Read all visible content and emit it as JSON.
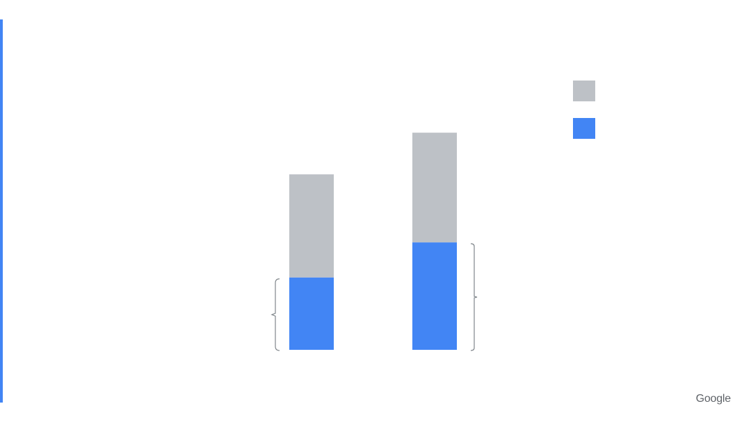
{
  "slide": {
    "brand": "Google",
    "accent_color": "#4285f4"
  },
  "chart_data": {
    "type": "bar",
    "stacked": true,
    "title": "",
    "xlabel": "",
    "ylabel": "",
    "categories": [
      "",
      ""
    ],
    "ylim": [
      0,
      10
    ],
    "grid": false,
    "legend_position": "top-right",
    "series": [
      {
        "name": "",
        "color": "#4285f4",
        "values": [
          3.3,
          4.9
        ]
      },
      {
        "name": "",
        "color": "#bdc1c6",
        "values": [
          4.7,
          5.0
        ]
      }
    ],
    "brackets": [
      {
        "category_index": 0,
        "series_index": 0,
        "side": "left"
      },
      {
        "category_index": 1,
        "series_index": 0,
        "side": "right"
      }
    ],
    "legend_order": [
      1,
      0
    ]
  }
}
